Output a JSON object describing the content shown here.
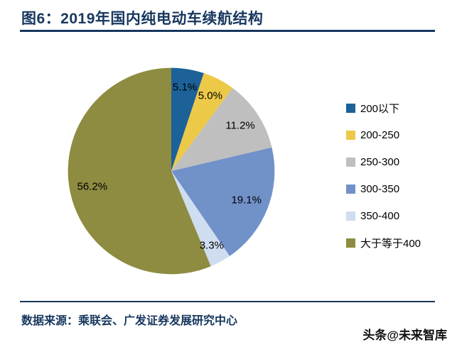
{
  "header": {
    "title": "图6：2019年国内纯电动车续航结构"
  },
  "chart_data": {
    "type": "pie",
    "title": "2019年国内纯电动车续航结构",
    "labels": [
      "200以下",
      "200-250",
      "250-300",
      "300-350",
      "350-400",
      "大于等于400"
    ],
    "values": [
      5.1,
      5.0,
      11.2,
      19.1,
      3.3,
      56.2
    ],
    "data_labels": [
      "5.1%",
      "5.0%",
      "11.2%",
      "19.1%",
      "3.3%",
      "56.2%"
    ],
    "colors": [
      "#1C6298",
      "#EDC948",
      "#BFBFBF",
      "#7191C9",
      "#CFDDF1",
      "#8D8C40"
    ],
    "legend_position": "right",
    "start_angle_deg": -90,
    "direction": "clockwise"
  },
  "footer": {
    "source": "数据来源：乘联会、广发证券发展研究中心",
    "watermark": "头条@未来智库"
  }
}
